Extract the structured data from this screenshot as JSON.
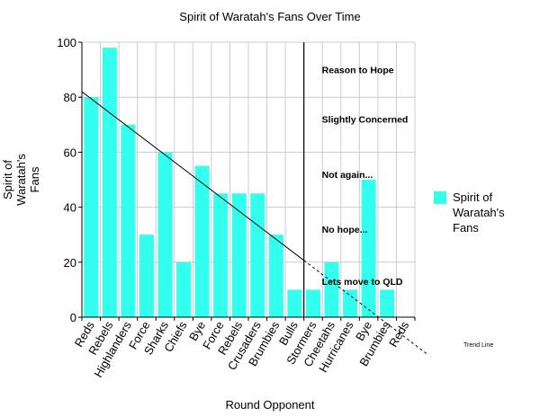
{
  "chart_data": {
    "type": "bar",
    "title": "Spirit of Waratah's Fans Over Time",
    "xlabel": "Round Opponent",
    "ylabel_lines": [
      "Spirit of",
      "Waratah's",
      "Fans"
    ],
    "ylim": [
      0,
      100
    ],
    "y_ticks": [
      "0",
      "20",
      "40",
      "60",
      "80",
      "100"
    ],
    "grid": true,
    "legend": {
      "position": "right",
      "label_lines": [
        "Spirit of",
        "Waratah's",
        "Fans"
      ],
      "color": "#33ffee"
    },
    "categories": [
      "Reds",
      "Rebels",
      "Highlanders",
      "Force",
      "Sharks",
      "Chiefs",
      "Bye",
      "Force",
      "Rebels",
      "Crusaders",
      "Brumbies",
      "Bulls",
      "Stormers",
      "Cheetahs",
      "Hurricanes",
      "Bye",
      "Brumbies",
      "Reds"
    ],
    "series": [
      {
        "name": "Spirit of Waratah's Fans",
        "values": [
          80,
          98,
          70,
          30,
          60,
          20,
          55,
          45,
          45,
          45,
          30,
          10,
          10,
          20,
          10,
          50,
          10,
          null
        ]
      }
    ],
    "trend_line": {
      "label": "Trend Line",
      "start": {
        "x": "Reds",
        "y": 82
      },
      "end_label_x": "Reds"
    },
    "annotations": [
      {
        "text": "Reason to Hope",
        "y": 90
      },
      {
        "text": "Slightly Concerned",
        "y": 72
      },
      {
        "text": "Not again...",
        "y": 52
      },
      {
        "text": "No hope...",
        "y": 32
      },
      {
        "text": "Lets move to QLD",
        "y": 13
      }
    ],
    "divider_after": "Bulls",
    "colors": {
      "bar": "#33ffee",
      "grid": "#cccccc",
      "axis": "#000000"
    }
  }
}
